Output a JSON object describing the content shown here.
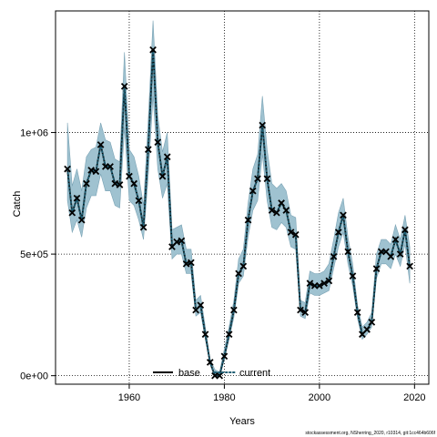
{
  "chart_data": {
    "type": "line",
    "xlabel": "Years",
    "ylabel": "Catch",
    "xlim": [
      1944.5,
      2023
    ],
    "ylim": [
      -35000,
      1500000
    ],
    "xticks": [
      1960,
      1980,
      2000,
      2020
    ],
    "xtick_labels": [
      "1960",
      "1980",
      "2000",
      "2020"
    ],
    "yticks": [
      0,
      500000,
      1000000
    ],
    "ytick_labels": [
      "0e+00",
      "5e+05",
      "1e+06"
    ],
    "grid": true,
    "legend_position": "bottom-center",
    "footnote": "stockassessment.org, NSherring_2020, r10314, git:1cc464b606f",
    "colors": {
      "band": "#9fc2d0",
      "band_edge": "#7aa3b5",
      "line": "#000000",
      "point_marker": "#000000"
    },
    "series": [
      {
        "name": "base",
        "style": "solid"
      },
      {
        "name": "current",
        "style": "dotted"
      }
    ],
    "x": [
      1947,
      1948,
      1949,
      1950,
      1951,
      1952,
      1953,
      1954,
      1955,
      1956,
      1957,
      1958,
      1959,
      1960,
      1961,
      1962,
      1963,
      1964,
      1965,
      1966,
      1967,
      1968,
      1969,
      1970,
      1971,
      1972,
      1973,
      1974,
      1975,
      1976,
      1977,
      1978,
      1979,
      1980,
      1981,
      1982,
      1983,
      1984,
      1985,
      1986,
      1987,
      1988,
      1989,
      1990,
      1991,
      1992,
      1993,
      1994,
      1995,
      1996,
      1997,
      1998,
      1999,
      2000,
      2001,
      2002,
      2003,
      2004,
      2005,
      2006,
      2007,
      2008,
      2009,
      2010,
      2011,
      2012,
      2013,
      2014,
      2015,
      2016,
      2017,
      2018,
      2019
    ],
    "estimate": [
      850000,
      670000,
      730000,
      640000,
      790000,
      845000,
      840000,
      950000,
      860000,
      860000,
      790000,
      785000,
      1190000,
      820000,
      790000,
      720000,
      610000,
      930000,
      1340000,
      960000,
      820000,
      900000,
      530000,
      550000,
      555000,
      460000,
      465000,
      270000,
      290000,
      170000,
      55000,
      0,
      0,
      80000,
      170000,
      270000,
      420000,
      450000,
      640000,
      760000,
      810000,
      1030000,
      810000,
      680000,
      670000,
      710000,
      680000,
      590000,
      580000,
      270000,
      260000,
      380000,
      370000,
      370000,
      380000,
      390000,
      490000,
      590000,
      660000,
      510000,
      410000,
      260000,
      170000,
      190000,
      220000,
      440000,
      510000,
      510000,
      490000,
      560000,
      500000,
      600000,
      450000
    ],
    "observed": [
      850000,
      670000,
      730000,
      640000,
      790000,
      845000,
      840000,
      950000,
      860000,
      860000,
      790000,
      785000,
      1190000,
      820000,
      790000,
      720000,
      610000,
      930000,
      1340000,
      960000,
      820000,
      900000,
      530000,
      550000,
      555000,
      460000,
      465000,
      270000,
      290000,
      170000,
      55000,
      0,
      0,
      80000,
      170000,
      270000,
      420000,
      450000,
      640000,
      760000,
      810000,
      1030000,
      810000,
      680000,
      670000,
      710000,
      680000,
      590000,
      580000,
      270000,
      260000,
      380000,
      370000,
      370000,
      380000,
      390000,
      490000,
      590000,
      660000,
      510000,
      410000,
      260000,
      170000,
      190000,
      220000,
      440000,
      510000,
      510000,
      490000,
      560000,
      500000,
      600000,
      450000
    ],
    "lower": [
      720000,
      590000,
      640000,
      570000,
      690000,
      740000,
      740000,
      830000,
      760000,
      760000,
      700000,
      690000,
      1020000,
      720000,
      700000,
      640000,
      560000,
      820000,
      1150000,
      850000,
      730000,
      790000,
      480000,
      500000,
      500000,
      420000,
      420000,
      245000,
      260000,
      150000,
      48000,
      0,
      0,
      65000,
      150000,
      240000,
      380000,
      410000,
      570000,
      680000,
      720000,
      910000,
      720000,
      610000,
      600000,
      630000,
      610000,
      530000,
      520000,
      245000,
      235000,
      340000,
      330000,
      330000,
      340000,
      350000,
      440000,
      530000,
      590000,
      460000,
      370000,
      235000,
      150000,
      170000,
      200000,
      400000,
      460000,
      460000,
      440000,
      500000,
      450000,
      540000,
      380000
    ],
    "upper": [
      1040000,
      780000,
      850000,
      760000,
      900000,
      930000,
      940000,
      1040000,
      970000,
      960000,
      890000,
      880000,
      1330000,
      930000,
      900000,
      820000,
      700000,
      1050000,
      1460000,
      1070000,
      920000,
      1000000,
      600000,
      610000,
      620000,
      520000,
      520000,
      310000,
      330000,
      200000,
      70000,
      25000,
      15000,
      110000,
      200000,
      310000,
      480000,
      520000,
      710000,
      850000,
      910000,
      1150000,
      930000,
      790000,
      770000,
      790000,
      760000,
      660000,
      650000,
      310000,
      300000,
      430000,
      420000,
      420000,
      430000,
      460000,
      560000,
      670000,
      730000,
      570000,
      460000,
      290000,
      200000,
      220000,
      260000,
      500000,
      560000,
      560000,
      540000,
      620000,
      560000,
      660000,
      530000
    ]
  }
}
